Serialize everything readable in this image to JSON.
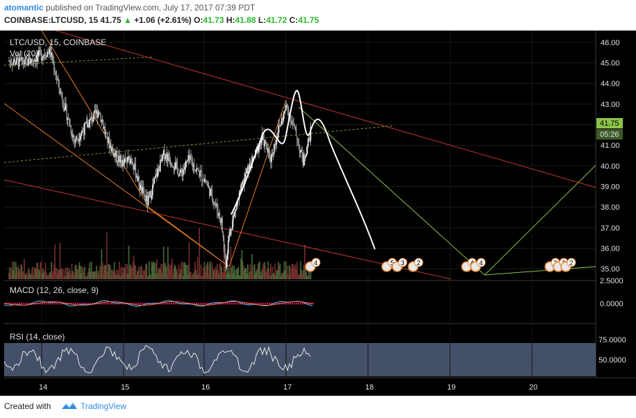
{
  "header": {
    "author": "atomantic",
    "published_text": "published on TradingView.com, July 17, 2017 07:39 PDT",
    "symbol": "COINBASE:LTCUSD, 15",
    "last": "41.75",
    "up_arrow": "▲",
    "change": "+1.06 (+2.61%)",
    "o_label": "O:",
    "o_val": "41.73",
    "h_label": "H:",
    "h_val": "41.88",
    "l_label": "L:",
    "l_val": "41.72",
    "c_label": "C:",
    "c_val": "41.75"
  },
  "panes": {
    "main_title": "LTC/USD, 15, COINBASE",
    "vol_title": "Vol (20)",
    "macd_title": "MACD (12, 26, close, 9)",
    "rsi_title": "RSI (14, close)",
    "price_tag": "41.75",
    "time_tag": "05:26"
  },
  "footer": {
    "created_with": "Created with",
    "brand": "TradingView"
  },
  "colors": {
    "background": "#000000",
    "up": "#e6e6e6",
    "down": "#cccccc",
    "volume_up": "#4a6b3a",
    "volume_down": "#7a2e2e",
    "trend_red": "#c0392b",
    "trend_orange": "#e67e22",
    "projection": "#ffffff",
    "green_path": "#8bc34a",
    "rsi_band": "#5a6b8a",
    "price_tag": "#8bc34a"
  },
  "chart_data": [
    {
      "type": "line",
      "title": "LTC/USD, 15, COINBASE",
      "x_axis": {
        "ticks": [
          "14",
          "15",
          "16",
          "17",
          "18",
          "19",
          "20"
        ]
      },
      "y_axis": {
        "ticks": [
          "35.00",
          "36.00",
          "37.00",
          "38.00",
          "39.00",
          "40.00",
          "41.00",
          "42.00",
          "43.00",
          "44.00",
          "45.00",
          "46.00"
        ],
        "ylim": [
          34.5,
          46.3
        ]
      },
      "series": [
        {
          "x": [
            13.6,
            13.8,
            14.0,
            14.1,
            14.2,
            14.3,
            14.4,
            14.5,
            14.6,
            14.7,
            14.8,
            14.9,
            15.0,
            15.1,
            15.2,
            15.3,
            15.4,
            15.5,
            15.6,
            15.7,
            15.8,
            15.9,
            16.0,
            16.1,
            16.2,
            16.25,
            16.3,
            16.4,
            16.5,
            16.6,
            16.7,
            16.8,
            16.9,
            17.0,
            17.1,
            17.2,
            17.3
          ],
          "y": [
            45.1,
            45.0,
            45.4,
            45.6,
            44.0,
            42.6,
            41.2,
            41.7,
            42.2,
            42.7,
            41.3,
            40.5,
            40.1,
            40.4,
            39.0,
            38.2,
            39.5,
            40.6,
            40.2,
            39.6,
            40.3,
            39.8,
            39.3,
            38.4,
            37.3,
            35.2,
            36.8,
            38.3,
            39.6,
            40.4,
            41.4,
            40.3,
            41.8,
            42.9,
            41.7,
            40.2,
            41.75
          ]
        }
      ],
      "annotations": {
        "price_tag": "41.75",
        "time_tag": "05:26"
      }
    },
    {
      "type": "line",
      "title": "MACD (12, 26, close, 9)",
      "y_axis": {
        "ticks": [
          "2.5000",
          "0.0000"
        ]
      }
    },
    {
      "type": "line",
      "title": "RSI (14, close)",
      "y_axis": {
        "ticks": [
          "75.0000",
          "50.0000"
        ]
      }
    }
  ]
}
